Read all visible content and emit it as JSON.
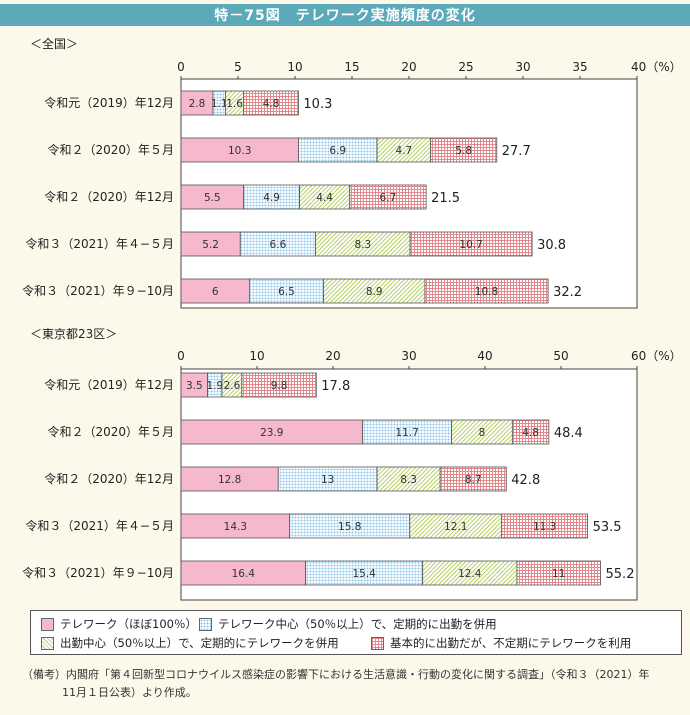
{
  "title": "特－75図　テレワーク実施頻度の変化",
  "colors": {
    "title_bg": "#5ba9b9",
    "s1": "#f5b8cc",
    "s2_bg": "#ffffff",
    "s2_dot": "#8dc6e8",
    "s3_bg": "#ffffff",
    "s3_line": "#b6cf66",
    "s4_bg": "#ffffff",
    "s4_dot": "#e5888c"
  },
  "chart_data": [
    {
      "type": "bar",
      "orientation": "horizontal",
      "stacked": true,
      "title": "＜全国＞",
      "categories": [
        "令和元（2019）年12月",
        "令和２（2020）年５月",
        "令和２（2020）年12月",
        "令和３（2021）年４−５月",
        "令和３（2021）年９−10月"
      ],
      "series": [
        {
          "name": "テレワーク（ほぼ100％）",
          "values": [
            2.8,
            10.3,
            5.5,
            5.2,
            6.0
          ]
        },
        {
          "name": "テレワーク中心（50％以上）で、定期的に出勤を併用",
          "values": [
            1.1,
            6.9,
            4.9,
            6.6,
            6.5
          ]
        },
        {
          "name": "出勤中心（50％以上）で、定期的にテレワークを併用",
          "values": [
            1.6,
            4.7,
            4.4,
            8.3,
            8.9
          ]
        },
        {
          "name": "基本的に出勤だが、不定期にテレワークを利用",
          "values": [
            4.8,
            5.8,
            6.7,
            10.7,
            10.8
          ]
        }
      ],
      "totals": [
        "10.3",
        "27.7",
        "21.5",
        "30.8",
        "32.2"
      ],
      "xlim": [
        0,
        40
      ],
      "ticks": [
        "0",
        "5",
        "10",
        "15",
        "20",
        "25",
        "30",
        "35",
        "40（%）"
      ]
    },
    {
      "type": "bar",
      "orientation": "horizontal",
      "stacked": true,
      "title": "＜東京都23区＞",
      "categories": [
        "令和元（2019）年12月",
        "令和２（2020）年５月",
        "令和２（2020）年12月",
        "令和３（2021）年４−５月",
        "令和３（2021）年９−10月"
      ],
      "series": [
        {
          "name": "テレワーク（ほぼ100％）",
          "values": [
            3.5,
            23.9,
            12.8,
            14.3,
            16.4
          ]
        },
        {
          "name": "テレワーク中心（50％以上）で、定期的に出勤を併用",
          "values": [
            1.9,
            11.7,
            13.0,
            15.8,
            15.4
          ]
        },
        {
          "name": "出勤中心（50％以上）で、定期的にテレワークを併用",
          "values": [
            2.6,
            8.0,
            8.3,
            12.1,
            12.4
          ]
        },
        {
          "name": "基本的に出勤だが、不定期にテレワークを利用",
          "values": [
            9.8,
            4.8,
            8.7,
            11.3,
            11.0
          ]
        }
      ],
      "totals": [
        "17.8",
        "48.4",
        "42.8",
        "53.5",
        "55.2"
      ],
      "xlim": [
        0,
        60
      ],
      "ticks": [
        "0",
        "10",
        "20",
        "30",
        "40",
        "50",
        "60（%）"
      ]
    }
  ],
  "legend": [
    "テレワーク（ほぼ100％）",
    "テレワーク中心（50％以上）で、定期的に出勤を併用",
    "出勤中心（50％以上）で、定期的にテレワークを併用",
    "基本的に出勤だが、不定期にテレワークを利用"
  ],
  "note_line1": "（備考）内閣府「第４回新型コロナウイルス感染症の影響下における生活意識・行動の変化に関する調査」（令和３（2021）年",
  "note_line2": "11月１日公表）より作成。"
}
